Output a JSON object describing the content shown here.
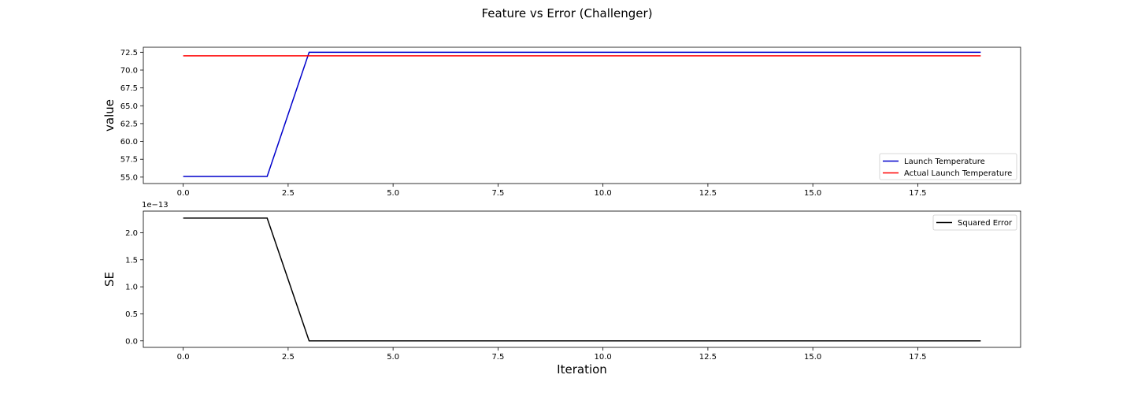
{
  "title": "Feature vs Error (Challenger)",
  "chart_data": [
    {
      "type": "line",
      "title": "",
      "xlabel": "",
      "ylabel": "value",
      "xlim": [
        -0.95,
        19.95
      ],
      "ylim": [
        54.1,
        73.2
      ],
      "xticks": [
        0,
        2.5,
        5,
        7.5,
        10,
        12.5,
        15,
        17.5
      ],
      "xtick_labels": [
        "0.0",
        "2.5",
        "5.0",
        "7.5",
        "10.0",
        "12.5",
        "15.0",
        "17.5"
      ],
      "yticks": [
        55,
        57.5,
        60,
        62.5,
        65,
        67.5,
        70,
        72.5
      ],
      "ytick_labels": [
        "55.0",
        "57.5",
        "60.0",
        "62.5",
        "65.0",
        "67.5",
        "70.0",
        "72.5"
      ],
      "x": [
        0,
        1,
        2,
        3,
        4,
        5,
        6,
        7,
        8,
        9,
        10,
        11,
        12,
        13,
        14,
        15,
        16,
        17,
        18,
        19
      ],
      "series": [
        {
          "name": "Launch Temperature",
          "color": "#0000cc",
          "values": [
            55.1,
            55.1,
            55.1,
            72.5,
            72.5,
            72.5,
            72.5,
            72.5,
            72.5,
            72.5,
            72.5,
            72.5,
            72.5,
            72.5,
            72.5,
            72.5,
            72.5,
            72.5,
            72.5,
            72.5
          ]
        },
        {
          "name": "Actual Launch Temperature",
          "color": "#ff0000",
          "values": [
            72,
            72,
            72,
            72,
            72,
            72,
            72,
            72,
            72,
            72,
            72,
            72,
            72,
            72,
            72,
            72,
            72,
            72,
            72,
            72
          ]
        }
      ],
      "legend": "lower-right",
      "grid": false
    },
    {
      "type": "line",
      "title": "",
      "xlabel": "Iteration",
      "ylabel": "SE",
      "offset_text": "1e−13",
      "xlim": [
        -0.95,
        19.95
      ],
      "ylim": [
        -0.12,
        2.4
      ],
      "xticks": [
        0,
        2.5,
        5,
        7.5,
        10,
        12.5,
        15,
        17.5
      ],
      "xtick_labels": [
        "0.0",
        "2.5",
        "5.0",
        "7.5",
        "10.0",
        "12.5",
        "15.0",
        "17.5"
      ],
      "yticks": [
        0,
        0.5,
        1,
        1.5,
        2
      ],
      "ytick_labels": [
        "0.0",
        "0.5",
        "1.0",
        "1.5",
        "2.0"
      ],
      "x": [
        0,
        1,
        2,
        3,
        4,
        5,
        6,
        7,
        8,
        9,
        10,
        11,
        12,
        13,
        14,
        15,
        16,
        17,
        18,
        19
      ],
      "series": [
        {
          "name": "Squared Error",
          "color": "#000000",
          "values": [
            2.27,
            2.27,
            2.27,
            0,
            0,
            0,
            0,
            0,
            0,
            0,
            0,
            0,
            0,
            0,
            0,
            0,
            0,
            0,
            0,
            0
          ]
        }
      ],
      "legend": "upper-right",
      "grid": false
    }
  ]
}
